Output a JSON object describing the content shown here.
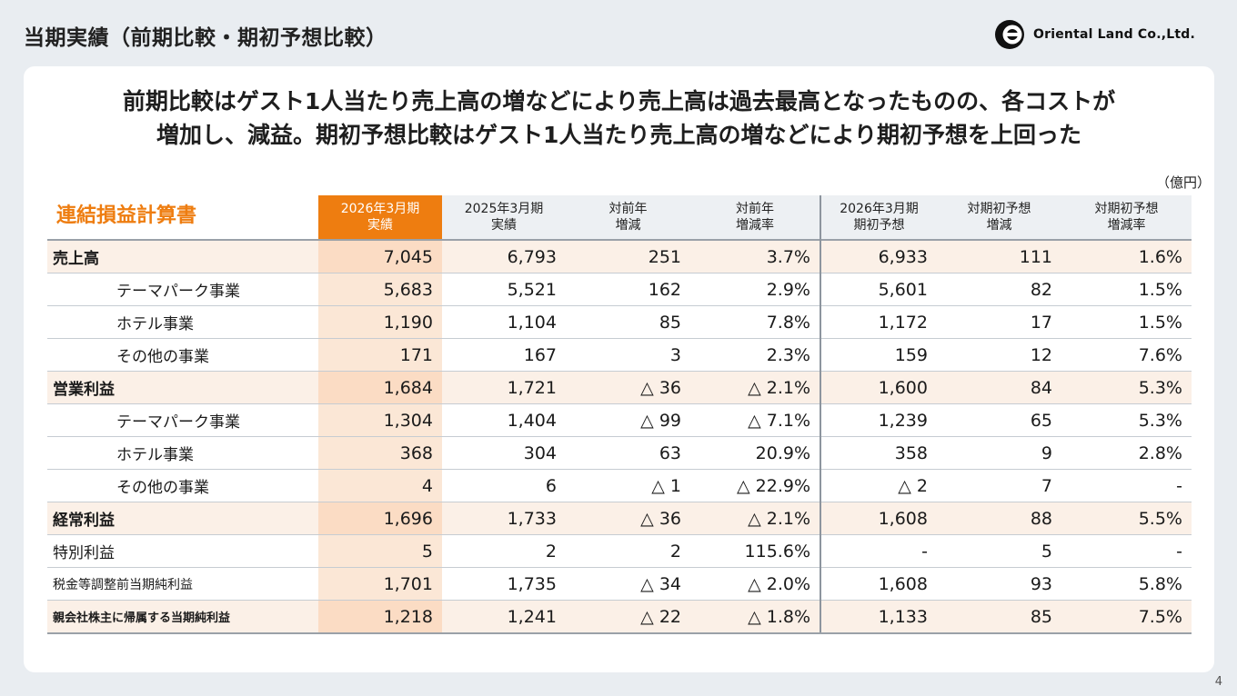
{
  "page_title": "当期実績（前期比較・期初予想比較）",
  "logo": {
    "text": "Oriental Land Co.,Ltd."
  },
  "headline": {
    "line1": "前期比較はゲスト1人当たり売上高の増などにより売上高は過去最高となったものの、各コストが",
    "line2": "増加し、減益。期初予想比較はゲスト1人当たり売上高の増などにより期初予想を上回った"
  },
  "unit": "（億円）",
  "statement_title": "連結損益計算書",
  "columns": [
    {
      "line1": "2026年3月期",
      "line2": "実績"
    },
    {
      "line1": "2025年3月期",
      "line2": "実績"
    },
    {
      "line1": "対前年",
      "line2": "増減"
    },
    {
      "line1": "対前年",
      "line2": "増減率"
    },
    {
      "line1": "2026年3月期",
      "line2": "期初予想"
    },
    {
      "line1": "対期初予想",
      "line2": "増減"
    },
    {
      "line1": "対期初予想",
      "line2": "増減率"
    }
  ],
  "rows": [
    {
      "label": "売上高",
      "values": [
        "7,045",
        "6,793",
        "251",
        "3.7%",
        "6,933",
        "111",
        "1.6%"
      ]
    },
    {
      "label": "テーマパーク事業",
      "values": [
        "5,683",
        "5,521",
        "162",
        "2.9%",
        "5,601",
        "82",
        "1.5%"
      ]
    },
    {
      "label": "ホテル事業",
      "values": [
        "1,190",
        "1,104",
        "85",
        "7.8%",
        "1,172",
        "17",
        "1.5%"
      ]
    },
    {
      "label": "その他の事業",
      "values": [
        "171",
        "167",
        "3",
        "2.3%",
        "159",
        "12",
        "7.6%"
      ]
    },
    {
      "label": "営業利益",
      "values": [
        "1,684",
        "1,721",
        "△ 36",
        "△ 2.1%",
        "1,600",
        "84",
        "5.3%"
      ]
    },
    {
      "label": "テーマパーク事業",
      "values": [
        "1,304",
        "1,404",
        "△ 99",
        "△ 7.1%",
        "1,239",
        "65",
        "5.3%"
      ]
    },
    {
      "label": "ホテル事業",
      "values": [
        "368",
        "304",
        "63",
        "20.9%",
        "358",
        "9",
        "2.8%"
      ]
    },
    {
      "label": "その他の事業",
      "values": [
        "4",
        "6",
        "△ 1",
        "△ 22.9%",
        "△ 2",
        "7",
        "-"
      ]
    },
    {
      "label": "経常利益",
      "values": [
        "1,696",
        "1,733",
        "△ 36",
        "△ 2.1%",
        "1,608",
        "88",
        "5.5%"
      ]
    },
    {
      "label": "特別利益",
      "values": [
        "5",
        "2",
        "2",
        "115.6%",
        "-",
        "5",
        "-"
      ]
    },
    {
      "label": "税金等調整前当期純利益",
      "values": [
        "1,701",
        "1,735",
        "△ 34",
        "△ 2.0%",
        "1,608",
        "93",
        "5.8%"
      ]
    },
    {
      "label": "親会社株主に帰属する当期純利益",
      "values": [
        "1,218",
        "1,241",
        "△ 22",
        "△ 1.8%",
        "1,133",
        "85",
        "7.5%"
      ]
    }
  ],
  "page_number": "4",
  "colors": {
    "accent": "#ee7d10",
    "background": "#e9edf1",
    "card": "#ffffff"
  }
}
